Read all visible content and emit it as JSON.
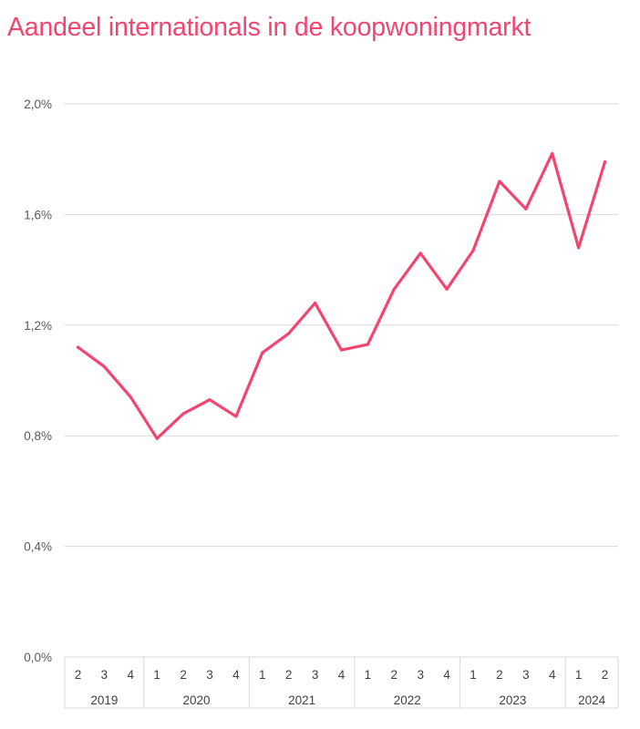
{
  "chart_data": {
    "type": "line",
    "title": "Aandeel internationals in de koopwoningmarkt",
    "colors": {
      "line": "#f2456f",
      "grid": "#d9d9d9",
      "axis_text": "#595959"
    },
    "ylim": [
      0,
      2.0
    ],
    "yticks": [
      {
        "value": 0.0,
        "label": "0,0%"
      },
      {
        "value": 0.4,
        "label": "0,4%"
      },
      {
        "value": 0.8,
        "label": "0,8%"
      },
      {
        "value": 1.2,
        "label": "1,2%"
      },
      {
        "value": 1.6,
        "label": "1,6%"
      },
      {
        "value": 2.0,
        "label": "2,0%"
      }
    ],
    "grid": true,
    "quarters": [
      "2",
      "3",
      "4",
      "1",
      "2",
      "3",
      "4",
      "1",
      "2",
      "3",
      "4",
      "1",
      "2",
      "3",
      "4",
      "1",
      "2",
      "3",
      "4",
      "1",
      "2"
    ],
    "years": [
      {
        "label": "2019",
        "count": 3
      },
      {
        "label": "2020",
        "count": 4
      },
      {
        "label": "2021",
        "count": 4
      },
      {
        "label": "2022",
        "count": 4
      },
      {
        "label": "2023",
        "count": 4
      },
      {
        "label": "2024",
        "count": 2
      }
    ],
    "series": [
      {
        "values": [
          1.12,
          1.05,
          0.94,
          0.79,
          0.88,
          0.93,
          0.87,
          1.1,
          1.17,
          1.28,
          1.11,
          1.13,
          1.33,
          1.46,
          1.33,
          1.47,
          1.72,
          1.62,
          1.82,
          1.48,
          1.79
        ]
      }
    ]
  }
}
